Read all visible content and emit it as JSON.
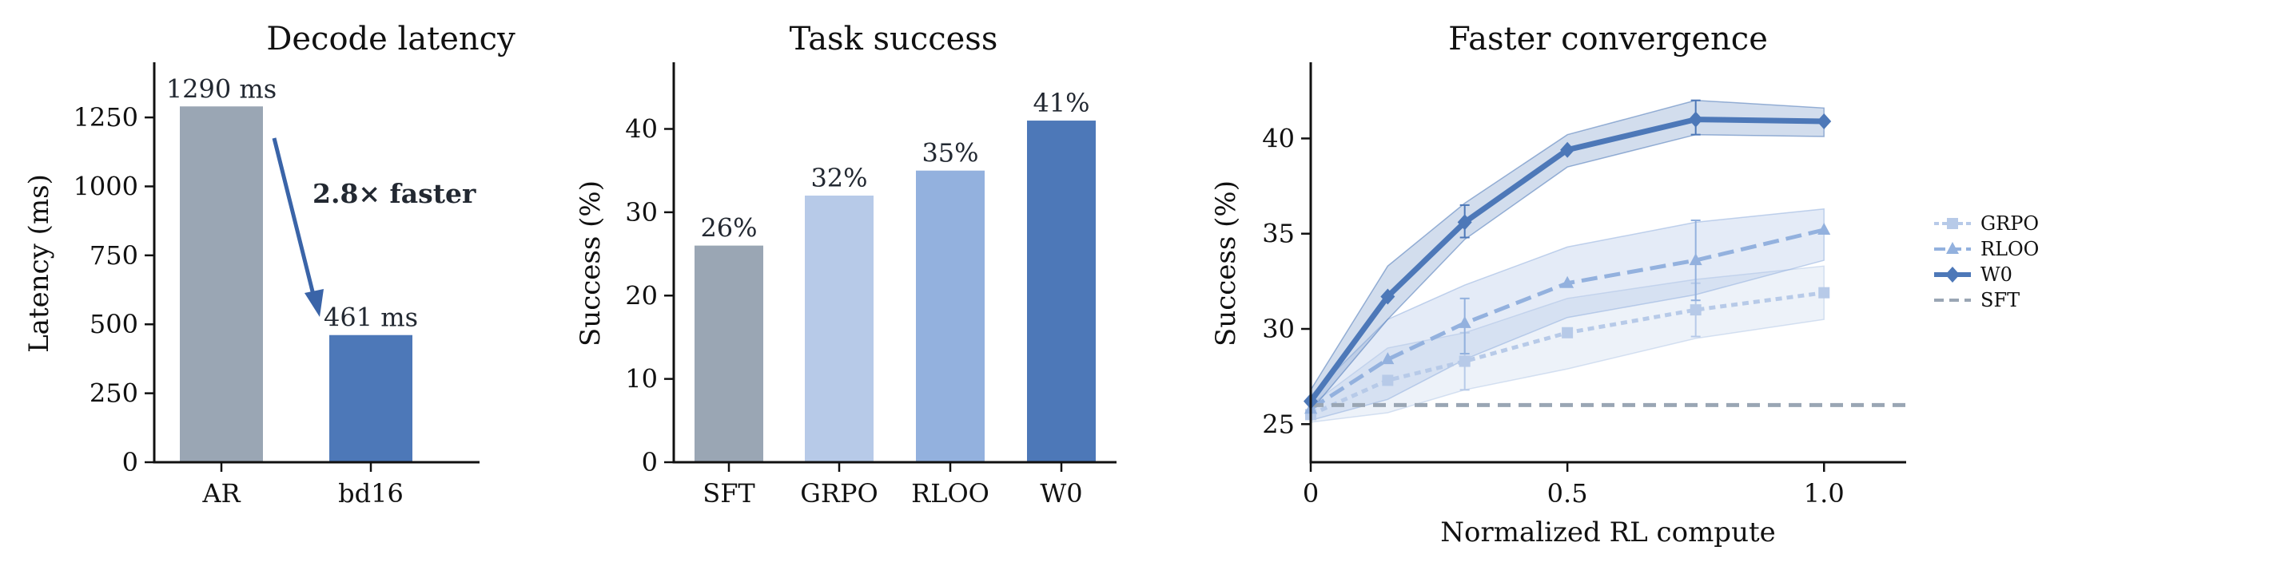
{
  "chart_data": [
    {
      "type": "bar",
      "title": "Decode latency",
      "xlabel": "",
      "ylabel": "Latency (ms)",
      "categories": [
        "AR",
        "bd16"
      ],
      "values": [
        1290,
        461
      ],
      "value_labels": [
        "1290 ms",
        "461 ms"
      ],
      "colors": [
        "#9aa6b4",
        "#4d78b8"
      ],
      "ylim": [
        0,
        1450
      ],
      "yticks": [
        0,
        250,
        500,
        750,
        1000,
        1250
      ],
      "annotation": "2.8× faster",
      "annotation_color": "#3a64a8",
      "grid": false
    },
    {
      "type": "bar",
      "title": "Task success",
      "xlabel": "",
      "ylabel": "Success (%)",
      "categories": [
        "SFT",
        "GRPO",
        "RLOO",
        "W0"
      ],
      "values": [
        26,
        32,
        35,
        41
      ],
      "value_labels": [
        "26%",
        "32%",
        "35%",
        "41%"
      ],
      "colors": [
        "#9aa6b4",
        "#b7cae8",
        "#93b1de",
        "#4d78b8"
      ],
      "ylim": [
        0,
        48
      ],
      "yticks": [
        0,
        10,
        20,
        30,
        40
      ],
      "grid": false
    },
    {
      "type": "line",
      "title": "Faster convergence",
      "xlabel": "Normalized RL compute",
      "ylabel": "Success (%)",
      "xlim": [
        0,
        1.16
      ],
      "ylim": [
        23,
        44
      ],
      "xticks": [
        0,
        0.5,
        1.0
      ],
      "xtick_labels": [
        "0",
        "0.5",
        "1.0"
      ],
      "yticks": [
        25,
        30,
        35,
        40
      ],
      "legend_position": "right",
      "grid": false,
      "series": [
        {
          "name": "GRPO",
          "color": "#b7cae8",
          "marker": "square",
          "dash": "8 6",
          "x": [
            0,
            0.15,
            0.3,
            0.5,
            0.75,
            1.0
          ],
          "y": [
            25.5,
            27.3,
            28.3,
            29.8,
            31.0,
            31.9
          ],
          "lower": [
            25.1,
            25.6,
            26.8,
            27.9,
            29.5,
            30.5
          ],
          "upper": [
            26.0,
            29.0,
            29.8,
            31.6,
            32.6,
            33.3
          ],
          "error_x": [
            0.3,
            0.75
          ],
          "error_low": [
            26.8,
            29.6
          ],
          "error_high": [
            29.8,
            32.4
          ]
        },
        {
          "name": "RLOO",
          "color": "#93b1de",
          "marker": "triangle",
          "dash": "20 9",
          "x": [
            0,
            0.15,
            0.3,
            0.5,
            0.75,
            1.0
          ],
          "y": [
            25.8,
            28.4,
            30.3,
            32.4,
            33.6,
            35.2
          ],
          "lower": [
            25.2,
            26.3,
            28.4,
            30.6,
            31.8,
            33.6
          ],
          "upper": [
            26.5,
            30.5,
            32.3,
            34.3,
            35.6,
            36.3
          ],
          "error_x": [
            0.3,
            0.75
          ],
          "error_low": [
            28.7,
            31.5
          ],
          "error_high": [
            31.6,
            35.7
          ]
        },
        {
          "name": "W0",
          "color": "#4d78b8",
          "marker": "diamond",
          "dash": "",
          "x": [
            0,
            0.15,
            0.3,
            0.5,
            0.75,
            1.0
          ],
          "y": [
            26.2,
            31.7,
            35.6,
            39.4,
            41.0,
            40.9
          ],
          "lower": [
            25.7,
            30.5,
            34.7,
            38.5,
            40.2,
            40.1
          ],
          "upper": [
            26.8,
            33.3,
            36.6,
            40.2,
            42.0,
            41.6
          ],
          "error_x": [
            0.3,
            0.75
          ],
          "error_low": [
            34.8,
            40.2
          ],
          "error_high": [
            36.5,
            42.0
          ]
        },
        {
          "name": "SFT",
          "color": "#9aa6b4",
          "marker": "none",
          "dash": "16 10",
          "x": [
            0,
            1.16
          ],
          "y": [
            26,
            26
          ]
        }
      ]
    }
  ]
}
